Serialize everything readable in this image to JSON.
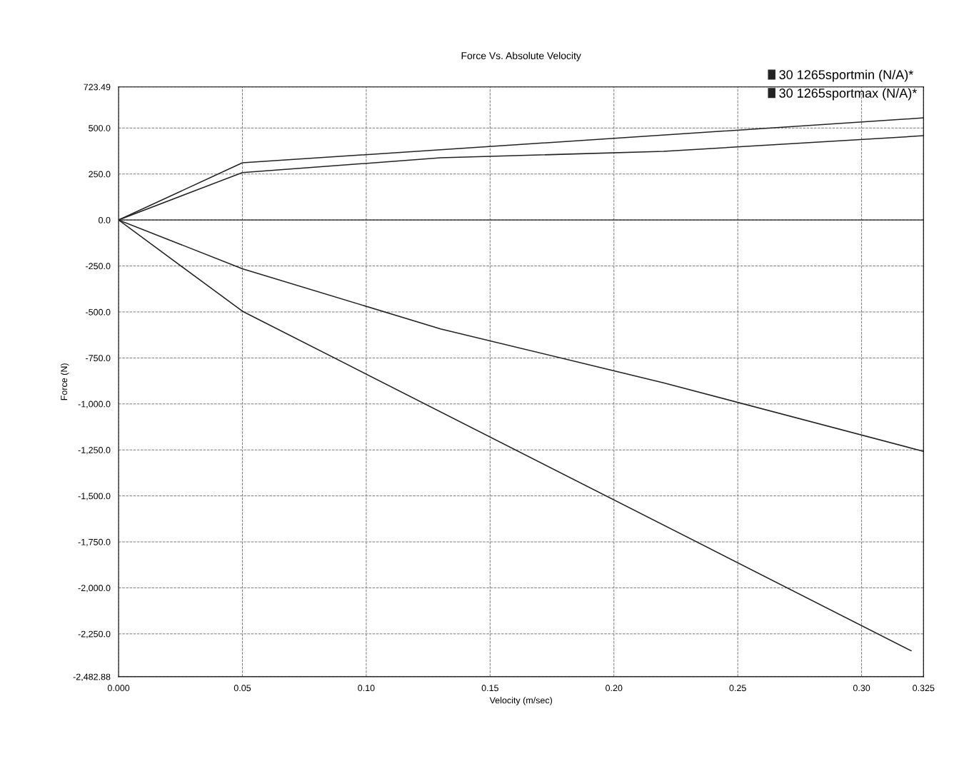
{
  "chart_data": {
    "type": "line",
    "title": "Force Vs. Absolute Velocity",
    "xlabel": "Velocity (m/sec)",
    "ylabel": "Force (N)",
    "series": [
      {
        "name": "30 1265sportmin (N/A)*",
        "color": "#222222",
        "x": [
          0,
          0.05,
          0.13,
          0.22,
          0.325
        ],
        "values": [
          0,
          258,
          338,
          373,
          458
        ]
      },
      {
        "name": "30 1265sportmax (N/A)*",
        "color": "#222222",
        "x": [
          0,
          0.05,
          0.325
        ],
        "values": [
          0,
          311,
          555
        ]
      },
      {
        "color": "#222222",
        "x": [
          0,
          0.05,
          0.13,
          0.22,
          0.325
        ],
        "values": [
          0,
          -265,
          -592,
          -885,
          -1258
        ]
      },
      {
        "color": "#222222",
        "x": [
          0,
          0.05,
          0.32
        ],
        "values": [
          0,
          -496,
          -2342
        ]
      }
    ],
    "xlim": [
      0,
      0.325
    ],
    "ylim": [
      -2482.88,
      723.49
    ],
    "xticks": [
      {
        "value": 0,
        "label": "0.000"
      },
      0.05,
      {
        "value": 0.1,
        "label": "0.10"
      },
      0.15,
      {
        "value": 0.2,
        "label": "0.20"
      },
      0.25,
      {
        "value": 0.3,
        "label": "0.30"
      },
      0.325
    ],
    "yticks": [
      723.49,
      {
        "value": 500,
        "label": "500.0"
      },
      {
        "value": 250,
        "label": "250.0"
      },
      {
        "value": 0,
        "label": "0.0"
      },
      {
        "value": -250,
        "label": "-250.0"
      },
      {
        "value": -500,
        "label": "-500.0"
      },
      {
        "value": -750,
        "label": "-750.0"
      },
      {
        "value": -1000,
        "label": "-1,000.0"
      },
      {
        "value": -1250,
        "label": "-1,250.0"
      },
      {
        "value": -1500,
        "label": "-1,500.0"
      },
      {
        "value": -1750,
        "label": "-1,750.0"
      },
      {
        "value": -2000,
        "label": "-2,000.0"
      },
      {
        "value": -2250,
        "label": "-2,250.0"
      },
      {
        "value": -2482.88,
        "label": "-2,482.88"
      }
    ],
    "ref_lines": [
      {
        "axis": "y",
        "value": 0,
        "color": "#222222",
        "line_style": "solid"
      }
    ],
    "grid": true,
    "legend": "top right",
    "marker": "none",
    "line_style": "solid"
  }
}
